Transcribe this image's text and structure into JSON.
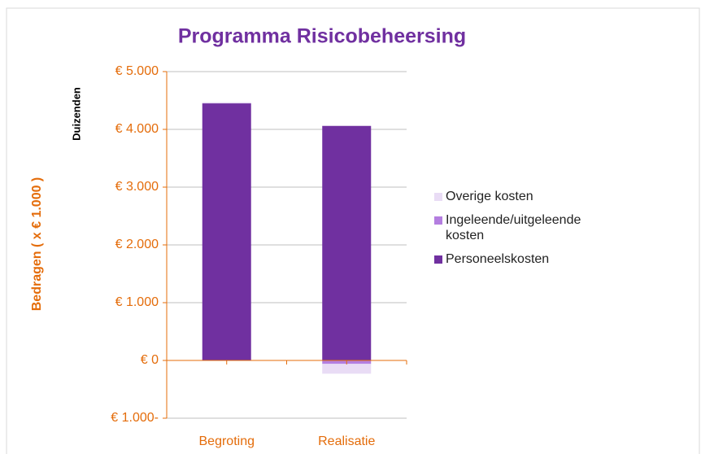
{
  "chart_data": {
    "type": "stacked_bar",
    "title": "Programma Risicobeheersing",
    "y_label": "Bedragen  ( x € 1.000 )",
    "y_unit_label": "Duizenden",
    "categories": [
      "Begroting",
      "Realisatie"
    ],
    "series": [
      {
        "name": "Personeelskosten",
        "color": "#7030a0",
        "values": [
          4450,
          4060
        ]
      },
      {
        "name": "Ingeleende/uitgeleende kosten",
        "color": "#b47ee0",
        "values": [
          0,
          -60
        ]
      },
      {
        "name": "Overige kosten",
        "color": "#e9dcf5",
        "values": [
          20,
          -170
        ]
      }
    ],
    "ylim": [
      -1000,
      5000
    ],
    "yticks": [
      {
        "value": -1000,
        "label": "€ 1.000-"
      },
      {
        "value": 0,
        "label": "€ 0"
      },
      {
        "value": 1000,
        "label": "€ 1.000"
      },
      {
        "value": 2000,
        "label": "€ 2.000"
      },
      {
        "value": 3000,
        "label": "€ 3.000"
      },
      {
        "value": 4000,
        "label": "€ 4.000"
      },
      {
        "value": 5000,
        "label": "€ 5.000"
      }
    ],
    "grid": true,
    "legend": "right"
  }
}
